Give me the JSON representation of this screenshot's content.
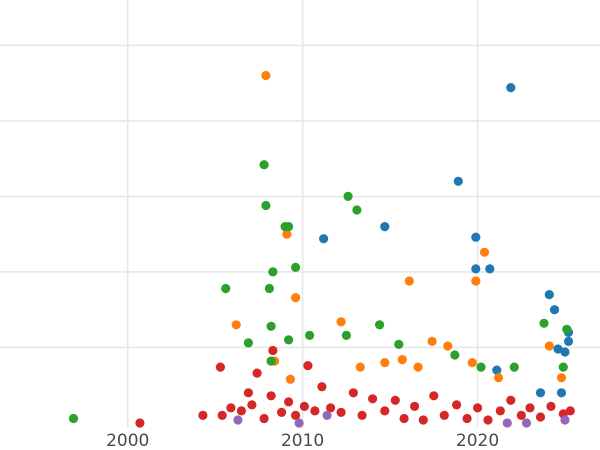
{
  "chart_data": {
    "type": "scatter",
    "title": "",
    "xlabel": "",
    "ylabel": "",
    "grid": true,
    "legend": "none",
    "xlim": [
      1992.7,
      2027.0
    ],
    "ylim": [
      0,
      28
    ],
    "x_ticks": [
      2000,
      2010,
      2020
    ],
    "x_tick_labels": [
      "2000",
      "2010",
      "2020"
    ],
    "y_gridlines": [
      0,
      5,
      10,
      15,
      20,
      25
    ],
    "series": [
      {
        "color": "#1f77b4",
        "points": [
          [
            2021.9,
            22.2
          ],
          [
            2018.9,
            16.0
          ],
          [
            2014.7,
            13.0
          ],
          [
            2011.2,
            12.2
          ],
          [
            2019.9,
            12.3
          ],
          [
            2019.9,
            10.2
          ],
          [
            2020.7,
            10.2
          ],
          [
            2024.1,
            8.5
          ],
          [
            2024.4,
            7.5
          ],
          [
            2025.2,
            6.0
          ],
          [
            2024.6,
            4.9
          ],
          [
            2025.0,
            4.7
          ],
          [
            2025.2,
            5.4
          ],
          [
            2021.1,
            3.5
          ],
          [
            2023.6,
            2.0
          ],
          [
            2024.8,
            2.0
          ]
        ]
      },
      {
        "color": "#ff7f0e",
        "points": [
          [
            2007.9,
            23.0
          ],
          [
            2009.1,
            12.5
          ],
          [
            2009.6,
            8.3
          ],
          [
            2012.2,
            6.7
          ],
          [
            2006.2,
            6.5
          ],
          [
            2016.1,
            9.4
          ],
          [
            2019.9,
            9.4
          ],
          [
            2020.4,
            11.3
          ],
          [
            2018.3,
            5.1
          ],
          [
            2015.7,
            4.2
          ],
          [
            2017.4,
            5.4
          ],
          [
            2016.6,
            3.7
          ],
          [
            2021.2,
            3.0
          ],
          [
            2024.8,
            3.0
          ],
          [
            2009.3,
            2.9
          ],
          [
            2008.4,
            4.1
          ],
          [
            2013.3,
            3.7
          ],
          [
            2014.7,
            4.0
          ],
          [
            2019.7,
            4.0
          ],
          [
            2024.1,
            5.1
          ]
        ]
      },
      {
        "color": "#2ca02c",
        "points": [
          [
            1996.9,
            0.3
          ],
          [
            2005.6,
            8.9
          ],
          [
            2007.8,
            17.1
          ],
          [
            2007.9,
            14.4
          ],
          [
            2008.3,
            10.0
          ],
          [
            2008.1,
            8.9
          ],
          [
            2009.0,
            13.0
          ],
          [
            2009.2,
            13.0
          ],
          [
            2009.6,
            10.3
          ],
          [
            2008.2,
            6.4
          ],
          [
            2008.2,
            4.1
          ],
          [
            2009.2,
            5.5
          ],
          [
            2006.9,
            5.3
          ],
          [
            2010.4,
            5.8
          ],
          [
            2012.6,
            15.0
          ],
          [
            2013.1,
            14.1
          ],
          [
            2012.5,
            5.8
          ],
          [
            2014.4,
            6.5
          ],
          [
            2015.5,
            5.2
          ],
          [
            2018.7,
            4.5
          ],
          [
            2020.2,
            3.7
          ],
          [
            2022.1,
            3.7
          ],
          [
            2023.8,
            6.6
          ],
          [
            2025.1,
            6.2
          ],
          [
            2024.9,
            3.7
          ]
        ]
      },
      {
        "color": "#d62728",
        "points": [
          [
            2000.7,
            0.0
          ],
          [
            2004.3,
            0.5
          ],
          [
            2005.3,
            3.7
          ],
          [
            2005.4,
            0.5
          ],
          [
            2005.9,
            1.0
          ],
          [
            2006.5,
            0.8
          ],
          [
            2006.9,
            2.0
          ],
          [
            2007.1,
            1.2
          ],
          [
            2007.4,
            3.3
          ],
          [
            2007.8,
            0.3
          ],
          [
            2008.2,
            1.8
          ],
          [
            2008.3,
            4.8
          ],
          [
            2008.8,
            0.7
          ],
          [
            2009.2,
            1.4
          ],
          [
            2009.6,
            0.5
          ],
          [
            2010.1,
            1.1
          ],
          [
            2010.3,
            3.8
          ],
          [
            2010.7,
            0.8
          ],
          [
            2011.1,
            2.4
          ],
          [
            2011.6,
            1.0
          ],
          [
            2012.2,
            0.7
          ],
          [
            2012.9,
            2.0
          ],
          [
            2013.4,
            0.5
          ],
          [
            2014.0,
            1.6
          ],
          [
            2014.7,
            0.8
          ],
          [
            2015.3,
            1.5
          ],
          [
            2015.8,
            0.3
          ],
          [
            2016.4,
            1.1
          ],
          [
            2016.9,
            0.2
          ],
          [
            2017.5,
            1.8
          ],
          [
            2018.1,
            0.5
          ],
          [
            2018.8,
            1.2
          ],
          [
            2019.4,
            0.3
          ],
          [
            2020.0,
            1.0
          ],
          [
            2020.6,
            0.2
          ],
          [
            2021.3,
            0.8
          ],
          [
            2021.9,
            1.5
          ],
          [
            2022.5,
            0.5
          ],
          [
            2023.0,
            1.0
          ],
          [
            2023.6,
            0.4
          ],
          [
            2024.2,
            1.1
          ],
          [
            2024.9,
            0.6
          ],
          [
            2025.3,
            0.8
          ]
        ]
      },
      {
        "color": "#9467bd",
        "points": [
          [
            2006.3,
            0.2
          ],
          [
            2009.8,
            0.0
          ],
          [
            2011.4,
            0.5
          ],
          [
            2021.7,
            0.0
          ],
          [
            2022.8,
            0.0
          ],
          [
            2025.0,
            0.2
          ]
        ]
      }
    ]
  }
}
